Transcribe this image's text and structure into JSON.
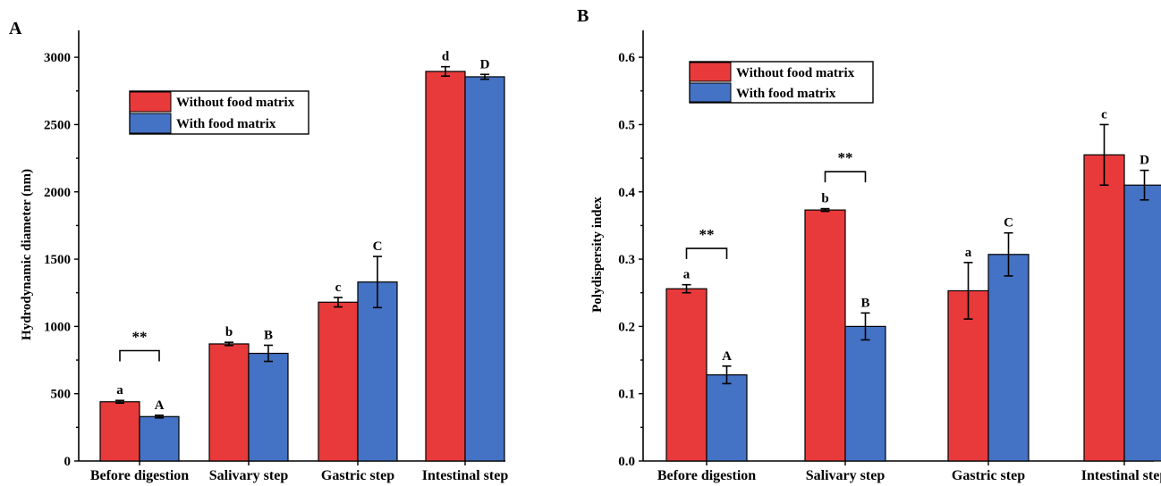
{
  "colors": {
    "without": "#E83A3A",
    "with": "#4472C4"
  },
  "chart_data": [
    {
      "type": "bar",
      "panel_label": "A",
      "ylabel": "Hydrodynamic diameter (nm)",
      "ylim": [
        0,
        3200
      ],
      "yticks": [
        0,
        500,
        1000,
        1500,
        2000,
        2500,
        3000
      ],
      "yticklabels": [
        "0",
        "500",
        "1000",
        "1500",
        "2000",
        "2500",
        "3000"
      ],
      "categories": [
        "Before digestion",
        "Salivary step",
        "Gastric step",
        "Intestinal step"
      ],
      "legend": {
        "placement": "upper-left",
        "entries": [
          "Without food matrix",
          "With food matrix"
        ]
      },
      "series": [
        {
          "name": "Without food matrix",
          "values": [
            440,
            870,
            1180,
            2895
          ],
          "errors": [
            10,
            12,
            35,
            35
          ],
          "letters": [
            "a",
            "b",
            "c",
            "d"
          ]
        },
        {
          "name": "With food matrix",
          "values": [
            330,
            800,
            1330,
            2855
          ],
          "errors": [
            10,
            60,
            190,
            18
          ],
          "letters": [
            "A",
            "B",
            "C",
            "D"
          ]
        }
      ],
      "significance": [
        {
          "category_index": 0,
          "text": "**",
          "y": 820
        }
      ]
    },
    {
      "type": "bar",
      "panel_label": "B",
      "ylabel": "Polydispersity index",
      "ylim": [
        0,
        0.64
      ],
      "yticks": [
        0,
        0.1,
        0.2,
        0.3,
        0.4,
        0.5,
        0.6
      ],
      "yticklabels": [
        "0.0",
        "0.1",
        "0.2",
        "0.3",
        "0.4",
        "0.5",
        "0.6"
      ],
      "categories": [
        "Before digestion",
        "Salivary step",
        "Gastric step",
        "Intestinal step"
      ],
      "legend": {
        "placement": "upper-left",
        "entries": [
          "Without food matrix",
          "With food matrix"
        ]
      },
      "series": [
        {
          "name": "Without food matrix",
          "values": [
            0.256,
            0.373,
            0.253,
            0.455
          ],
          "errors": [
            0.006,
            0.002,
            0.042,
            0.045
          ],
          "letters": [
            "a",
            "b",
            "a",
            "c"
          ]
        },
        {
          "name": "With food matrix",
          "values": [
            0.128,
            0.2,
            0.307,
            0.41
          ],
          "errors": [
            0.013,
            0.02,
            0.032,
            0.022
          ],
          "letters": [
            "A",
            "B",
            "C",
            "D"
          ]
        }
      ],
      "significance": [
        {
          "category_index": 0,
          "text": "**",
          "y": 0.316
        },
        {
          "category_index": 1,
          "text": "**",
          "y": 0.43
        }
      ]
    }
  ]
}
